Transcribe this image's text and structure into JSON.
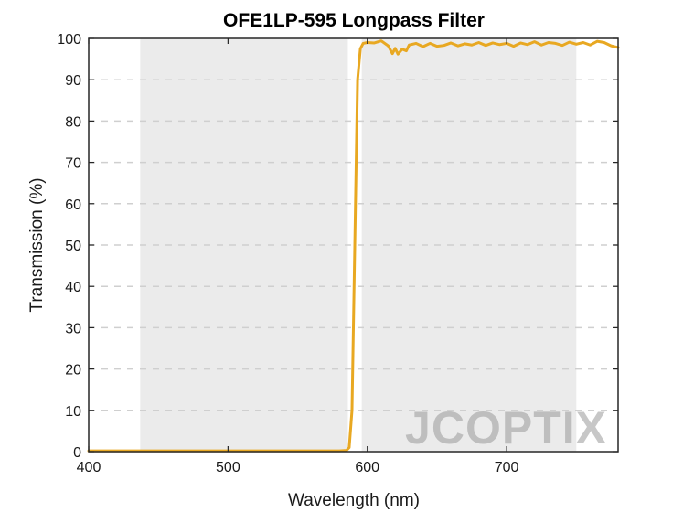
{
  "chart_data": {
    "type": "line",
    "title": "OFE1LP-595 Longpass Filter",
    "xlabel": "Wavelength (nm)",
    "ylabel": "Transmission (%)",
    "xlim": [
      400,
      780
    ],
    "ylim": [
      0,
      100
    ],
    "xticks": [
      400,
      500,
      600,
      700
    ],
    "yticks": [
      0,
      10,
      20,
      30,
      40,
      50,
      60,
      70,
      80,
      90,
      100
    ],
    "grid": "horizontal dashed",
    "shaded_bands": [
      {
        "from": 437,
        "to": 586
      },
      {
        "from": 596,
        "to": 750
      }
    ],
    "series": [
      {
        "color": "#E8A822",
        "x": [
          400,
          450,
          500,
          550,
          580,
          585,
          587,
          589,
          591,
          593,
          595,
          597,
          600,
          605,
          610,
          615,
          618,
          620,
          622,
          625,
          628,
          630,
          635,
          640,
          645,
          650,
          655,
          660,
          665,
          670,
          675,
          680,
          685,
          690,
          695,
          700,
          705,
          710,
          715,
          720,
          725,
          730,
          735,
          740,
          745,
          750,
          755,
          760,
          765,
          770,
          775,
          780
        ],
        "y": [
          0.2,
          0.2,
          0.2,
          0.2,
          0.2,
          0.3,
          1.0,
          10,
          50,
          90,
          97.5,
          98.8,
          99.0,
          98.9,
          99.4,
          98.2,
          96.3,
          97.6,
          96.2,
          97.4,
          97.0,
          98.4,
          98.8,
          98.0,
          98.8,
          98.1,
          98.3,
          98.9,
          98.2,
          98.7,
          98.4,
          99.0,
          98.3,
          98.9,
          98.5,
          98.8,
          98.1,
          98.9,
          98.5,
          99.2,
          98.4,
          99.0,
          98.8,
          98.3,
          99.1,
          98.6,
          99.0,
          98.4,
          99.3,
          99.0,
          98.2,
          97.8
        ]
      }
    ]
  },
  "watermark": {
    "text": "JCOPTIX"
  },
  "colors": {
    "curve": "#E8A822",
    "band": "#ebebeb",
    "grid": "#cfcfcf"
  }
}
